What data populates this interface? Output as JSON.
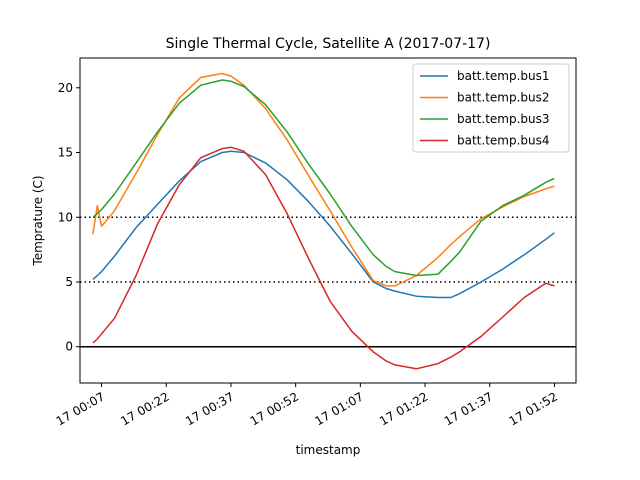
{
  "chart_data": {
    "type": "line",
    "title": "Single Thermal Cycle, Satellite A (2017-07-17)",
    "xlabel": "timestamp",
    "ylabel": "Temprature (C)",
    "xlim": [
      "2017-07-17 00:02",
      "2017-07-17 01:57"
    ],
    "ylim": [
      -2.8,
      22.3
    ],
    "x_ticks": [
      "17 00:07",
      "17 00:22",
      "17 00:37",
      "17 00:52",
      "17 01:07",
      "17 01:22",
      "17 01:37",
      "17 01:52"
    ],
    "y_ticks": [
      0,
      5,
      10,
      15,
      20
    ],
    "reference_lines": [
      {
        "y": 10,
        "style": "dotted"
      },
      {
        "y": 5,
        "style": "dotted"
      },
      {
        "y": 0,
        "style": "solid"
      }
    ],
    "legend_position": "top-right",
    "x": [
      "2017-07-17 00:05",
      "2017-07-17 00:06",
      "2017-07-17 00:07",
      "2017-07-17 00:10",
      "2017-07-17 00:15",
      "2017-07-17 00:20",
      "2017-07-17 00:25",
      "2017-07-17 00:30",
      "2017-07-17 00:35",
      "2017-07-17 00:37",
      "2017-07-17 00:40",
      "2017-07-17 00:45",
      "2017-07-17 00:50",
      "2017-07-17 00:55",
      "2017-07-17 01:00",
      "2017-07-17 01:05",
      "2017-07-17 01:10",
      "2017-07-17 01:13",
      "2017-07-17 01:15",
      "2017-07-17 01:20",
      "2017-07-17 01:25",
      "2017-07-17 01:28",
      "2017-07-17 01:30",
      "2017-07-17 01:35",
      "2017-07-17 01:40",
      "2017-07-17 01:45",
      "2017-07-17 01:50",
      "2017-07-17 01:52"
    ],
    "series": [
      {
        "name": "batt.temp.bus1",
        "color": "#1f77b4",
        "values": [
          5.2,
          5.5,
          5.8,
          7.0,
          9.2,
          11.0,
          12.8,
          14.3,
          15.0,
          15.1,
          15.0,
          14.2,
          12.9,
          11.2,
          9.3,
          7.2,
          5.0,
          4.5,
          4.3,
          3.9,
          3.8,
          3.8,
          4.1,
          5.0,
          6.0,
          7.1,
          8.3,
          8.8
        ]
      },
      {
        "name": "batt.temp.bus2",
        "color": "#ff7f0e",
        "values": [
          8.7,
          10.9,
          9.3,
          10.5,
          13.4,
          16.4,
          19.2,
          20.8,
          21.1,
          20.9,
          20.2,
          18.4,
          16.0,
          13.2,
          10.5,
          7.7,
          5.1,
          4.7,
          4.7,
          5.5,
          6.9,
          7.9,
          8.5,
          9.9,
          10.8,
          11.6,
          12.2,
          12.4
        ]
      },
      {
        "name": "batt.temp.bus3",
        "color": "#2ca02c",
        "values": [
          10.0,
          10.3,
          10.6,
          11.8,
          14.2,
          16.6,
          18.8,
          20.2,
          20.6,
          20.5,
          20.1,
          18.7,
          16.6,
          14.1,
          11.8,
          9.3,
          7.1,
          6.2,
          5.8,
          5.5,
          5.6,
          6.6,
          7.3,
          9.7,
          10.9,
          11.7,
          12.7,
          13.0
        ]
      },
      {
        "name": "batt.temp.bus4",
        "color": "#d62728",
        "values": [
          0.3,
          0.6,
          1.0,
          2.2,
          5.5,
          9.5,
          12.5,
          14.6,
          15.3,
          15.4,
          15.1,
          13.3,
          10.3,
          6.8,
          3.5,
          1.2,
          -0.4,
          -1.1,
          -1.4,
          -1.7,
          -1.3,
          -0.8,
          -0.4,
          0.8,
          2.3,
          3.8,
          4.9,
          4.7
        ]
      }
    ]
  }
}
